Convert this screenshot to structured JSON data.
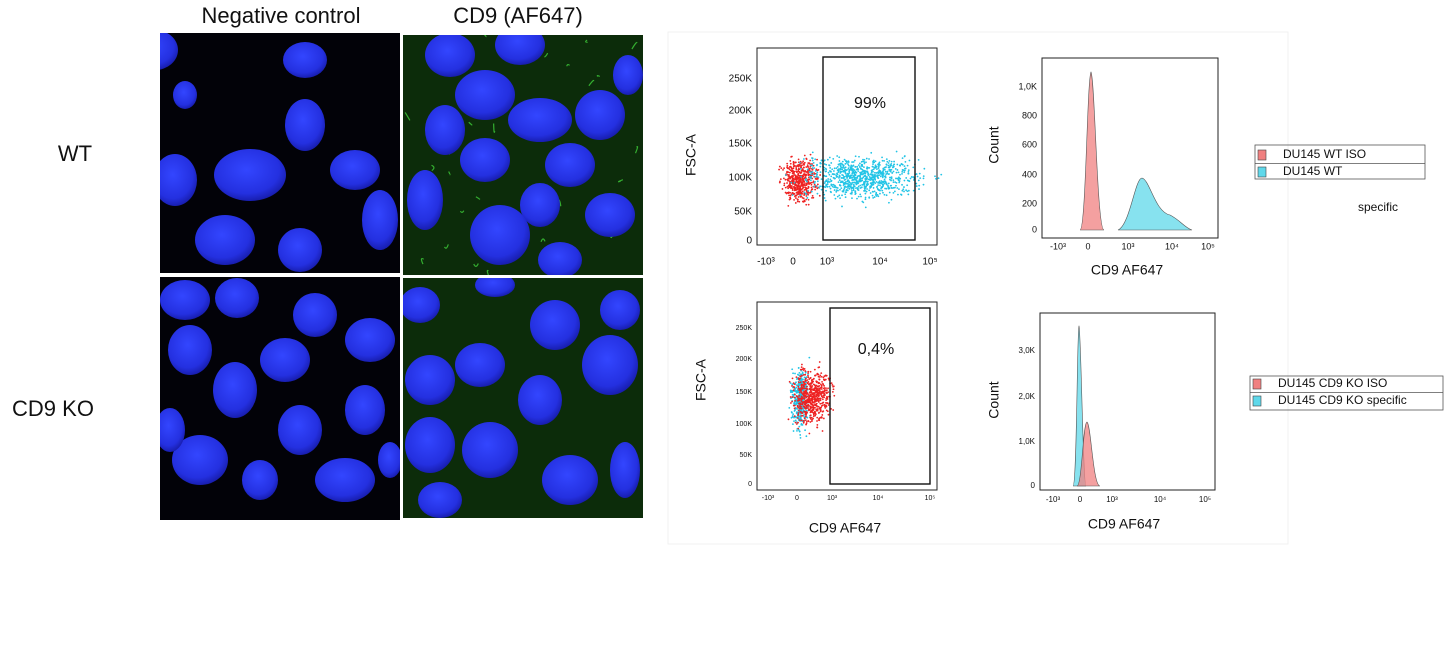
{
  "column_labels": [
    "Negative control",
    "CD9 (AF647)"
  ],
  "row_labels": [
    "WT",
    "CD9 KO"
  ],
  "flow": {
    "rows": [
      {
        "scatter": {
          "y_label": "FSC-A",
          "gate_label": "99%",
          "yticks": [
            "250K",
            "200K",
            "150K",
            "100K",
            "50K",
            "0"
          ],
          "xticks": [
            "-10³",
            "0",
            "10³",
            "10⁴",
            "10⁵"
          ]
        },
        "histogram": {
          "y_label": "Count",
          "x_label": "CD9 AF647",
          "yticks": [
            "1,0K",
            "800",
            "600",
            "400",
            "200",
            "0"
          ],
          "xticks": [
            "-10³",
            "0",
            "10³",
            "10⁴",
            "10⁵"
          ]
        },
        "legend": [
          "DU145 WT ISO",
          "DU145 WT"
        ],
        "note": "specific"
      },
      {
        "scatter": {
          "y_label": "FSC-A",
          "gate_label": "0,4%",
          "x_label": "CD9 AF647",
          "yticks": [
            "250K",
            "200K",
            "150K",
            "100K",
            "50K",
            "0"
          ],
          "xticks": [
            "-10³",
            "0",
            "10³",
            "10⁴",
            "10⁵"
          ]
        },
        "histogram": {
          "y_label": "Count",
          "x_label": "CD9 AF647",
          "yticks": [
            "3,0K",
            "2,0K",
            "1,0K",
            "0"
          ],
          "xticks": [
            "-10³",
            "0",
            "10³",
            "10⁴",
            "10⁵"
          ]
        },
        "legend": [
          "DU145 CD9 KO ISO",
          "DU145 CD9 KO specific"
        ]
      }
    ]
  }
}
